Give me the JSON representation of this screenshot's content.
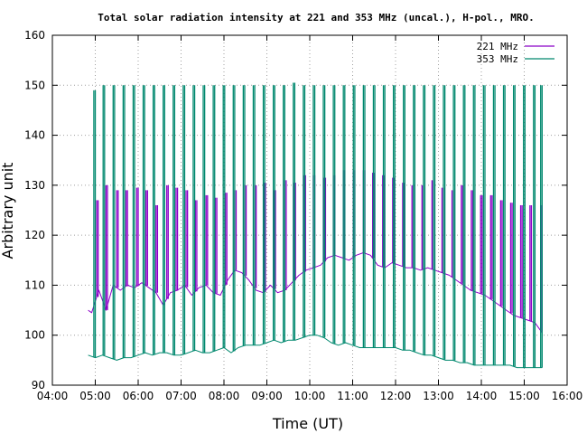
{
  "chart_data": {
    "type": "line",
    "title": "Total solar radiation intensity at 221 and 353 MHz (uncal.), H-pol., MRO.",
    "xlabel": "Time (UT)",
    "ylabel": "Arbitrary unit",
    "xlim": [
      "04:00",
      "16:00"
    ],
    "ylim": [
      90,
      160
    ],
    "xticks": [
      "04:00",
      "05:00",
      "06:00",
      "07:00",
      "08:00",
      "09:00",
      "10:00",
      "11:00",
      "12:00",
      "13:00",
      "14:00",
      "15:00",
      "16:00"
    ],
    "yticks": [
      90,
      100,
      110,
      120,
      130,
      140,
      150,
      160
    ],
    "grid": true,
    "legend": "top-right",
    "series": [
      {
        "name": "221 MHz",
        "color": "#8b00c8",
        "x": [
          "04:50",
          "04:55",
          "05:05",
          "05:15",
          "05:25",
          "05:35",
          "05:45",
          "05:55",
          "06:05",
          "06:15",
          "06:25",
          "06:35",
          "06:45",
          "06:55",
          "07:05",
          "07:15",
          "07:25",
          "07:35",
          "07:45",
          "07:55",
          "08:05",
          "08:15",
          "08:25",
          "08:35",
          "08:45",
          "08:55",
          "09:05",
          "09:15",
          "09:25",
          "09:35",
          "09:45",
          "09:55",
          "10:05",
          "10:15",
          "10:25",
          "10:35",
          "10:45",
          "10:55",
          "11:05",
          "11:15",
          "11:25",
          "11:35",
          "11:45",
          "11:55",
          "12:05",
          "12:15",
          "12:25",
          "12:35",
          "12:45",
          "12:55",
          "13:05",
          "13:15",
          "13:25",
          "13:35",
          "13:45",
          "13:55",
          "14:05",
          "14:15",
          "14:25",
          "14:35",
          "14:45",
          "14:55",
          "15:05",
          "15:15",
          "15:25"
        ],
        "values": [
          105,
          104.5,
          109,
          105,
          110,
          109,
          110,
          109.5,
          110.5,
          109.5,
          108.5,
          106,
          108.5,
          109,
          110,
          108,
          109.5,
          110,
          108.5,
          108,
          111,
          113,
          112.5,
          111,
          109,
          108.5,
          110,
          108.5,
          109,
          110.5,
          112,
          113,
          113.5,
          114,
          115.5,
          116,
          115.5,
          115,
          116,
          116.5,
          116,
          114,
          113.5,
          114.5,
          114,
          113.5,
          113.5,
          113,
          113.5,
          113,
          112.5,
          112,
          111,
          110,
          109,
          108.5,
          108,
          107,
          106,
          105,
          104,
          103.5,
          103,
          102.5,
          100.5
        ],
        "spikes": [
          {
            "x": "05:02",
            "y": 127
          },
          {
            "x": "05:15",
            "y": 130
          },
          {
            "x": "05:30",
            "y": 129
          },
          {
            "x": "05:43",
            "y": 129
          },
          {
            "x": "05:58",
            "y": 129.5
          },
          {
            "x": "06:11",
            "y": 129
          },
          {
            "x": "06:25",
            "y": 126
          },
          {
            "x": "06:40",
            "y": 130
          },
          {
            "x": "06:53",
            "y": 129.5
          },
          {
            "x": "07:07",
            "y": 129
          },
          {
            "x": "07:20",
            "y": 127
          },
          {
            "x": "07:35",
            "y": 128
          },
          {
            "x": "07:48",
            "y": 127.5
          },
          {
            "x": "08:02",
            "y": 128.5
          },
          {
            "x": "08:15",
            "y": 129
          },
          {
            "x": "08:29",
            "y": 130
          },
          {
            "x": "08:43",
            "y": 130
          },
          {
            "x": "08:56",
            "y": 130.5
          },
          {
            "x": "09:10",
            "y": 129
          },
          {
            "x": "09:25",
            "y": 131
          },
          {
            "x": "09:38",
            "y": 130.5
          },
          {
            "x": "09:52",
            "y": 132
          },
          {
            "x": "10:05",
            "y": 132
          },
          {
            "x": "10:20",
            "y": 131.5
          },
          {
            "x": "10:33",
            "y": 132
          },
          {
            "x": "10:47",
            "y": 133
          },
          {
            "x": "11:01",
            "y": 133
          },
          {
            "x": "11:15",
            "y": 133
          },
          {
            "x": "11:28",
            "y": 132.5
          },
          {
            "x": "11:42",
            "y": 132
          },
          {
            "x": "11:56",
            "y": 131.5
          },
          {
            "x": "12:10",
            "y": 130.5
          },
          {
            "x": "12:23",
            "y": 130
          },
          {
            "x": "12:37",
            "y": 130
          },
          {
            "x": "12:51",
            "y": 131
          },
          {
            "x": "13:05",
            "y": 129.5
          },
          {
            "x": "13:19",
            "y": 129
          },
          {
            "x": "13:32",
            "y": 130
          },
          {
            "x": "13:46",
            "y": 129
          },
          {
            "x": "13:59",
            "y": 128
          },
          {
            "x": "14:13",
            "y": 128
          },
          {
            "x": "14:27",
            "y": 127
          },
          {
            "x": "14:41",
            "y": 126.5
          },
          {
            "x": "14:55",
            "y": 126
          },
          {
            "x": "15:08",
            "y": 126
          },
          {
            "x": "15:23",
            "y": 126
          }
        ]
      },
      {
        "name": "353 MHz",
        "color": "#00886e",
        "x": [
          "04:50",
          "05:00",
          "05:10",
          "05:20",
          "05:30",
          "05:40",
          "05:50",
          "06:00",
          "06:10",
          "06:20",
          "06:30",
          "06:40",
          "06:50",
          "07:00",
          "07:10",
          "07:20",
          "07:30",
          "07:40",
          "07:50",
          "08:00",
          "08:10",
          "08:20",
          "08:30",
          "08:40",
          "08:50",
          "09:00",
          "09:10",
          "09:20",
          "09:30",
          "09:40",
          "09:50",
          "10:00",
          "10:10",
          "10:20",
          "10:30",
          "10:40",
          "10:50",
          "11:00",
          "11:10",
          "11:20",
          "11:30",
          "11:40",
          "11:50",
          "12:00",
          "12:10",
          "12:20",
          "12:30",
          "12:40",
          "12:50",
          "13:00",
          "13:10",
          "13:20",
          "13:30",
          "13:40",
          "13:50",
          "14:00",
          "14:10",
          "14:20",
          "14:30",
          "14:40",
          "14:50",
          "15:00",
          "15:10",
          "15:20",
          "15:25"
        ],
        "values": [
          96,
          95.5,
          96,
          95.5,
          95,
          95.5,
          95.5,
          96,
          96.5,
          96,
          96.5,
          96.5,
          96,
          96,
          96.5,
          97,
          96.5,
          96.5,
          97,
          97.5,
          96.5,
          97.5,
          98,
          98,
          98,
          98.5,
          99,
          98.5,
          99,
          99,
          99.5,
          100,
          100,
          99.5,
          98.5,
          98,
          98.5,
          98,
          97.5,
          97.5,
          97.5,
          97.5,
          97.5,
          97.5,
          97,
          97,
          96.5,
          96,
          96,
          95.5,
          95,
          95,
          94.5,
          94.5,
          94,
          94,
          94,
          94,
          94,
          94,
          93.5,
          93.5,
          93.5,
          93.5,
          93.5
        ],
        "spikes": [
          {
            "x": "04:58",
            "y": 149
          },
          {
            "x": "05:11",
            "y": 150
          },
          {
            "x": "05:25",
            "y": 150
          },
          {
            "x": "05:39",
            "y": 150
          },
          {
            "x": "05:53",
            "y": 150
          },
          {
            "x": "06:07",
            "y": 150
          },
          {
            "x": "06:21",
            "y": 150
          },
          {
            "x": "06:35",
            "y": 150
          },
          {
            "x": "06:49",
            "y": 150
          },
          {
            "x": "07:03",
            "y": 150
          },
          {
            "x": "07:17",
            "y": 150
          },
          {
            "x": "07:31",
            "y": 150
          },
          {
            "x": "07:45",
            "y": 150
          },
          {
            "x": "07:59",
            "y": 150
          },
          {
            "x": "08:13",
            "y": 150
          },
          {
            "x": "08:27",
            "y": 150
          },
          {
            "x": "08:41",
            "y": 150
          },
          {
            "x": "08:55",
            "y": 150
          },
          {
            "x": "09:09",
            "y": 150
          },
          {
            "x": "09:23",
            "y": 150
          },
          {
            "x": "09:37",
            "y": 150.5
          },
          {
            "x": "09:51",
            "y": 150
          },
          {
            "x": "10:05",
            "y": 150
          },
          {
            "x": "10:19",
            "y": 150
          },
          {
            "x": "10:33",
            "y": 150
          },
          {
            "x": "10:47",
            "y": 150
          },
          {
            "x": "11:01",
            "y": 150
          },
          {
            "x": "11:15",
            "y": 150
          },
          {
            "x": "11:29",
            "y": 150
          },
          {
            "x": "11:43",
            "y": 150
          },
          {
            "x": "11:57",
            "y": 150
          },
          {
            "x": "12:11",
            "y": 150
          },
          {
            "x": "12:25",
            "y": 150
          },
          {
            "x": "12:39",
            "y": 150
          },
          {
            "x": "12:53",
            "y": 150
          },
          {
            "x": "13:07",
            "y": 150
          },
          {
            "x": "13:21",
            "y": 150
          },
          {
            "x": "13:35",
            "y": 150
          },
          {
            "x": "13:49",
            "y": 150
          },
          {
            "x": "14:03",
            "y": 150
          },
          {
            "x": "14:17",
            "y": 150
          },
          {
            "x": "14:31",
            "y": 150
          },
          {
            "x": "14:45",
            "y": 150
          },
          {
            "x": "14:59",
            "y": 150
          },
          {
            "x": "15:13",
            "y": 150
          },
          {
            "x": "15:23",
            "y": 150
          }
        ]
      }
    ]
  }
}
